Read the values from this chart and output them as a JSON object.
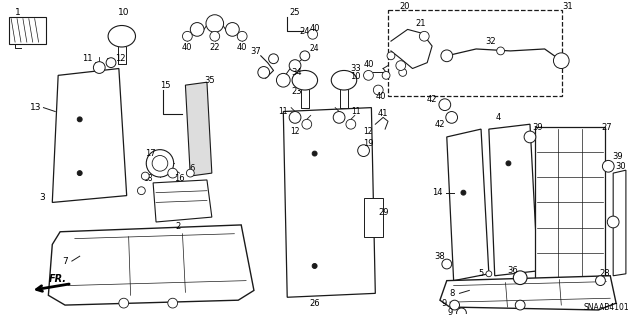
{
  "background_color": "#ffffff",
  "diagram_code": "SNAAB4101",
  "figsize": [
    6.4,
    3.19
  ],
  "dpi": 100,
  "image_b64": ""
}
